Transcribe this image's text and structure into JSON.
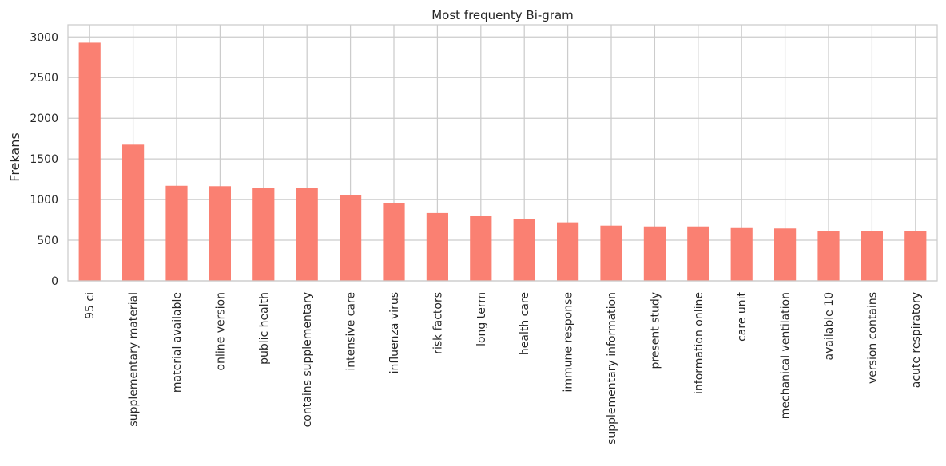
{
  "chart_data": {
    "type": "bar",
    "title": "Most frequenty Bi-gram",
    "xlabel": "",
    "ylabel": "Frekans",
    "ylim": [
      0,
      3150
    ],
    "yticks": [
      0,
      500,
      1000,
      1500,
      2000,
      2500,
      3000
    ],
    "grid": true,
    "bar_color": "#fa8072",
    "categories": [
      "95 ci",
      "supplementary material",
      "material available",
      "online version",
      "public health",
      "contains supplementary",
      "intensive care",
      "influenza virus",
      "risk factors",
      "long term",
      "health care",
      "immune response",
      "supplementary information",
      "present study",
      "information online",
      "care unit",
      "mechanical ventilation",
      "available 10",
      "version contains",
      "acute respiratory"
    ],
    "values": [
      2930,
      1675,
      1170,
      1165,
      1145,
      1145,
      1055,
      960,
      835,
      795,
      760,
      720,
      680,
      670,
      670,
      650,
      645,
      615,
      615,
      615
    ]
  }
}
